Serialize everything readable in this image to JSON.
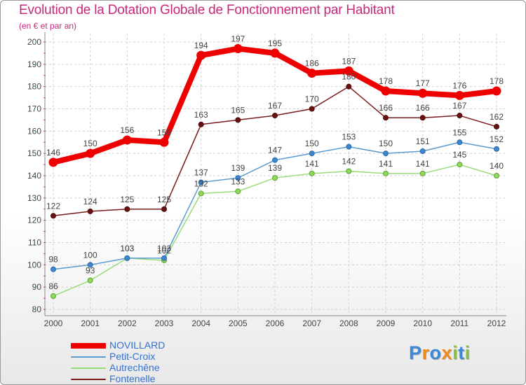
{
  "header": {
    "title": "Evolution de la Dotation Globale de Fonctionnement par Habitant",
    "subtitle": "(en € et par an)"
  },
  "chart_data": {
    "type": "line",
    "title": "Evolution de la Dotation Globale de Fonctionnement par Habitant",
    "subtitle": "(en € et par an)",
    "xlabel": "",
    "ylabel": "",
    "x": [
      "2000",
      "2001",
      "2002",
      "2003",
      "2004",
      "2005",
      "2006",
      "2007",
      "2008",
      "2009",
      "2010",
      "2011",
      "2012"
    ],
    "ylim": [
      80,
      200
    ],
    "yticks": [
      80,
      90,
      100,
      110,
      120,
      130,
      140,
      150,
      160,
      170,
      180,
      190,
      200
    ],
    "grid": true,
    "legend_position": "bottom-left",
    "series": [
      {
        "name": "NOVILLARD",
        "color": "#ee0000",
        "values": [
          146,
          150,
          156,
          155,
          194,
          197,
          195,
          186,
          187,
          178,
          177,
          176,
          178
        ]
      },
      {
        "name": "Petit-Croix",
        "color": "#5b9bd0",
        "values": [
          98,
          100,
          103,
          103,
          137,
          139,
          147,
          150,
          153,
          150,
          151,
          155,
          152
        ]
      },
      {
        "name": "Autrechêne",
        "color": "#99dd77",
        "values": [
          86,
          93,
          103,
          102,
          132,
          133,
          139,
          141,
          142,
          141,
          141,
          145,
          140
        ]
      },
      {
        "name": "Fontenelle",
        "color": "#7a1a1a",
        "values": [
          122,
          124,
          125,
          125,
          163,
          165,
          167,
          170,
          180,
          166,
          166,
          167,
          162
        ]
      }
    ]
  },
  "legend": {
    "items": [
      {
        "label": "NOVILLARD",
        "color": "#ee0000"
      },
      {
        "label": "Petit-Croix",
        "color": "#5b9bd0"
      },
      {
        "label": "Autrechêne",
        "color": "#99dd77"
      },
      {
        "label": "Fontenelle",
        "color": "#7a1a1a"
      }
    ]
  },
  "brand": {
    "letters": [
      "P",
      "r",
      "o",
      "x",
      "i",
      "t",
      "i"
    ],
    "colors": [
      "#3f88d6",
      "#f08a18",
      "#3f88d6",
      "#f08a18",
      "#86c440",
      "#3f88d6",
      "#86c440"
    ]
  }
}
